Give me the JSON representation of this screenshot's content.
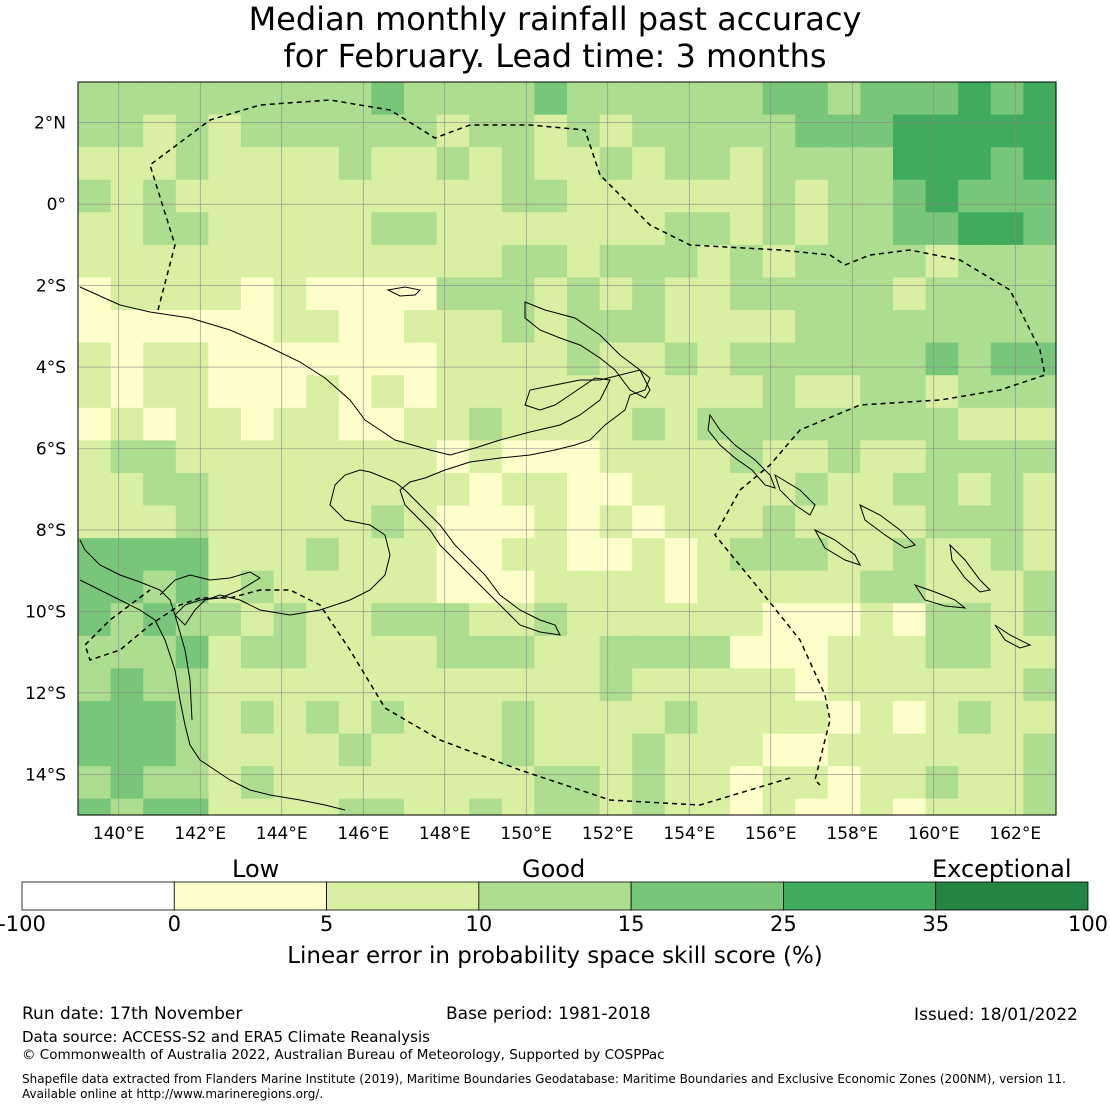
{
  "title": {
    "line1": "Median monthly rainfall past accuracy",
    "line2": "for February. Lead time: 3 months"
  },
  "map": {
    "lon_range": [
      139,
      163
    ],
    "lat_range": [
      -15,
      3
    ],
    "lon_ticks": [
      "140°E",
      "142°E",
      "144°E",
      "146°E",
      "148°E",
      "150°E",
      "152°E",
      "154°E",
      "156°E",
      "158°E",
      "160°E",
      "162°E"
    ],
    "lat_ticks": [
      "2°N",
      "0°",
      "2°S",
      "4°S",
      "6°S",
      "8°S",
      "10°S",
      "12°S",
      "14°S"
    ],
    "colors": {
      "c0": "#ffffff",
      "c1": "#ffffcc",
      "c2": "#d9f0a3",
      "c3": "#addd8e",
      "c4": "#78c679",
      "c5": "#41ab5d",
      "c6": "#238443"
    }
  },
  "legend": {
    "category_low": "Low",
    "category_good": "Good",
    "category_exceptional": "Exceptional",
    "ticks": [
      "-100",
      "0",
      "5",
      "10",
      "15",
      "25",
      "35",
      "100"
    ],
    "colors": [
      "#ffffff",
      "#ffffcc",
      "#d9f0a3",
      "#addd8e",
      "#78c679",
      "#41ab5d",
      "#238443"
    ],
    "axis_label": "Linear error in probability space skill score (%)"
  },
  "footer": {
    "run_date": "Run date: 17th November",
    "base_period": "Base period: 1981-2018",
    "issued": "Issued: 18/01/2022",
    "data_source": "Data source: ACCESS-S2 and ERA5 Climate Reanalysis",
    "copyright": "© Commonwealth of Australia 2022, Australian Bureau of Meteorology, Supported by COSPPac",
    "shapefile_line1": "Shapefile data extracted from Flanders Marine Institute (2019), Maritime Boundaries Geodatabase: Maritime Boundaries and Exclusive Economic Zones (200NM), version 11.",
    "shapefile_line2": "Available online at http://www.marineregions.org/."
  }
}
